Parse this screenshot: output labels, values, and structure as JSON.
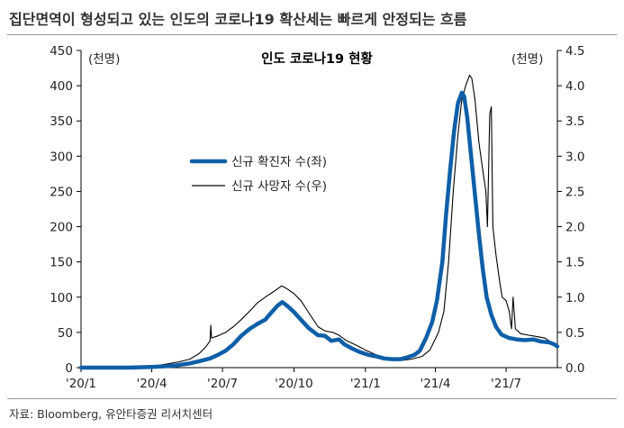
{
  "headline": "집단면역이 형성되고 있는 인도의 코로나19 확산세는 빠르게 안정되는 흐름",
  "source": "자료: Bloomberg, 유안타증권 리서치센터",
  "chart_data": {
    "type": "line",
    "title": "인도 코로나19 현황",
    "left_axis": {
      "unit": "(천명)",
      "range": [
        0,
        450
      ],
      "ticks": [
        0,
        50,
        100,
        150,
        200,
        250,
        300,
        350,
        400,
        450
      ],
      "tick_labels": [
        "0",
        "50",
        "100",
        "150",
        "200",
        "250",
        "300",
        "350",
        "400",
        "450"
      ]
    },
    "right_axis": {
      "unit": "(천명)",
      "range": [
        0,
        4.5
      ],
      "ticks": [
        0,
        0.5,
        1,
        1.5,
        2,
        2.5,
        3,
        3.5,
        4,
        4.5
      ],
      "tick_labels": [
        "0.0",
        "0.5",
        "1.0",
        "1.5",
        "2.0",
        "2.5",
        "3.0",
        "3.5",
        "4.0",
        "4.5"
      ]
    },
    "x_axis": {
      "range": [
        "2020-01-01",
        "2021-09-05"
      ],
      "ticks": [
        "2020-01-01",
        "2020-04-01",
        "2020-07-01",
        "2020-10-01",
        "2021-01-01",
        "2021-04-01",
        "2021-07-01"
      ],
      "tick_labels": [
        "'20/1",
        "'20/4",
        "'20/7",
        "'20/10",
        "'21/1",
        "'21/4",
        "'21/7"
      ]
    },
    "legend_position": "center-left",
    "grid": false,
    "series": [
      {
        "name": "신규 확진자 수(좌)",
        "axis": "left",
        "color": "#0f5fa8",
        "points": [
          [
            "2020-01-01",
            0
          ],
          [
            "2020-03-01",
            0
          ],
          [
            "2020-04-01",
            1
          ],
          [
            "2020-04-20",
            2
          ],
          [
            "2020-05-01",
            3
          ],
          [
            "2020-05-20",
            6
          ],
          [
            "2020-06-01",
            9
          ],
          [
            "2020-06-15",
            13
          ],
          [
            "2020-06-25",
            18
          ],
          [
            "2020-07-05",
            24
          ],
          [
            "2020-07-15",
            33
          ],
          [
            "2020-07-25",
            45
          ],
          [
            "2020-08-05",
            55
          ],
          [
            "2020-08-15",
            62
          ],
          [
            "2020-08-25",
            68
          ],
          [
            "2020-09-01",
            77
          ],
          [
            "2020-09-10",
            88
          ],
          [
            "2020-09-16",
            93
          ],
          [
            "2020-09-22",
            88
          ],
          [
            "2020-10-01",
            79
          ],
          [
            "2020-10-10",
            68
          ],
          [
            "2020-10-20",
            56
          ],
          [
            "2020-11-01",
            46
          ],
          [
            "2020-11-10",
            45
          ],
          [
            "2020-11-18",
            38
          ],
          [
            "2020-11-28",
            40
          ],
          [
            "2020-12-05",
            33
          ],
          [
            "2020-12-15",
            27
          ],
          [
            "2020-12-25",
            22
          ],
          [
            "2021-01-05",
            18
          ],
          [
            "2021-01-15",
            16
          ],
          [
            "2021-01-25",
            13
          ],
          [
            "2021-02-05",
            12
          ],
          [
            "2021-02-15",
            12
          ],
          [
            "2021-02-25",
            15
          ],
          [
            "2021-03-05",
            18
          ],
          [
            "2021-03-12",
            24
          ],
          [
            "2021-03-20",
            42
          ],
          [
            "2021-03-28",
            65
          ],
          [
            "2021-04-03",
            95
          ],
          [
            "2021-04-10",
            150
          ],
          [
            "2021-04-15",
            220
          ],
          [
            "2021-04-20",
            280
          ],
          [
            "2021-04-25",
            335
          ],
          [
            "2021-04-30",
            375
          ],
          [
            "2021-05-05",
            390
          ],
          [
            "2021-05-08",
            385
          ],
          [
            "2021-05-12",
            355
          ],
          [
            "2021-05-17",
            300
          ],
          [
            "2021-05-22",
            245
          ],
          [
            "2021-05-27",
            190
          ],
          [
            "2021-06-01",
            140
          ],
          [
            "2021-06-06",
            100
          ],
          [
            "2021-06-12",
            75
          ],
          [
            "2021-06-18",
            58
          ],
          [
            "2021-06-25",
            47
          ],
          [
            "2021-07-05",
            42
          ],
          [
            "2021-07-15",
            40
          ],
          [
            "2021-07-25",
            39
          ],
          [
            "2021-08-05",
            40
          ],
          [
            "2021-08-15",
            37
          ],
          [
            "2021-08-25",
            36
          ],
          [
            "2021-09-01",
            33
          ],
          [
            "2021-09-05",
            30
          ]
        ]
      },
      {
        "name": "신규 사망자 수(우)",
        "axis": "right",
        "color": "#000000",
        "points": [
          [
            "2020-01-01",
            0
          ],
          [
            "2020-03-15",
            0
          ],
          [
            "2020-04-01",
            0.02
          ],
          [
            "2020-04-20",
            0.05
          ],
          [
            "2020-05-05",
            0.08
          ],
          [
            "2020-05-20",
            0.12
          ],
          [
            "2020-06-01",
            0.2
          ],
          [
            "2020-06-10",
            0.3
          ],
          [
            "2020-06-15",
            0.38
          ],
          [
            "2020-06-16",
            0.6
          ],
          [
            "2020-06-17",
            0.42
          ],
          [
            "2020-06-25",
            0.45
          ],
          [
            "2020-07-05",
            0.5
          ],
          [
            "2020-07-15",
            0.58
          ],
          [
            "2020-07-25",
            0.68
          ],
          [
            "2020-08-05",
            0.8
          ],
          [
            "2020-08-15",
            0.92
          ],
          [
            "2020-08-25",
            1.0
          ],
          [
            "2020-09-05",
            1.08
          ],
          [
            "2020-09-15",
            1.16
          ],
          [
            "2020-09-22",
            1.12
          ],
          [
            "2020-10-01",
            1.05
          ],
          [
            "2020-10-10",
            0.95
          ],
          [
            "2020-10-20",
            0.78
          ],
          [
            "2020-11-01",
            0.58
          ],
          [
            "2020-11-10",
            0.52
          ],
          [
            "2020-11-20",
            0.5
          ],
          [
            "2020-11-28",
            0.46
          ],
          [
            "2020-12-08",
            0.38
          ],
          [
            "2020-12-20",
            0.32
          ],
          [
            "2021-01-01",
            0.25
          ],
          [
            "2021-01-15",
            0.18
          ],
          [
            "2021-02-01",
            0.12
          ],
          [
            "2021-02-15",
            0.1
          ],
          [
            "2021-03-01",
            0.12
          ],
          [
            "2021-03-15",
            0.16
          ],
          [
            "2021-03-25",
            0.25
          ],
          [
            "2021-04-05",
            0.5
          ],
          [
            "2021-04-12",
            0.8
          ],
          [
            "2021-04-18",
            1.5
          ],
          [
            "2021-04-24",
            2.5
          ],
          [
            "2021-04-30",
            3.3
          ],
          [
            "2021-05-05",
            3.8
          ],
          [
            "2021-05-10",
            4.0
          ],
          [
            "2021-05-15",
            4.15
          ],
          [
            "2021-05-18",
            4.1
          ],
          [
            "2021-05-22",
            3.8
          ],
          [
            "2021-05-27",
            3.2
          ],
          [
            "2021-06-01",
            2.8
          ],
          [
            "2021-06-05",
            2.5
          ],
          [
            "2021-06-07",
            2.0
          ],
          [
            "2021-06-10",
            3.6
          ],
          [
            "2021-06-12",
            3.7
          ],
          [
            "2021-06-14",
            2.0
          ],
          [
            "2021-06-18",
            1.6
          ],
          [
            "2021-06-23",
            1.2
          ],
          [
            "2021-06-26",
            1.0
          ],
          [
            "2021-07-01",
            0.95
          ],
          [
            "2021-07-05",
            0.8
          ],
          [
            "2021-07-08",
            0.55
          ],
          [
            "2021-07-10",
            1.0
          ],
          [
            "2021-07-13",
            0.55
          ],
          [
            "2021-07-20",
            0.48
          ],
          [
            "2021-07-30",
            0.46
          ],
          [
            "2021-08-10",
            0.44
          ],
          [
            "2021-08-20",
            0.42
          ],
          [
            "2021-08-28",
            0.36
          ],
          [
            "2021-09-05",
            0.32
          ]
        ]
      }
    ]
  }
}
